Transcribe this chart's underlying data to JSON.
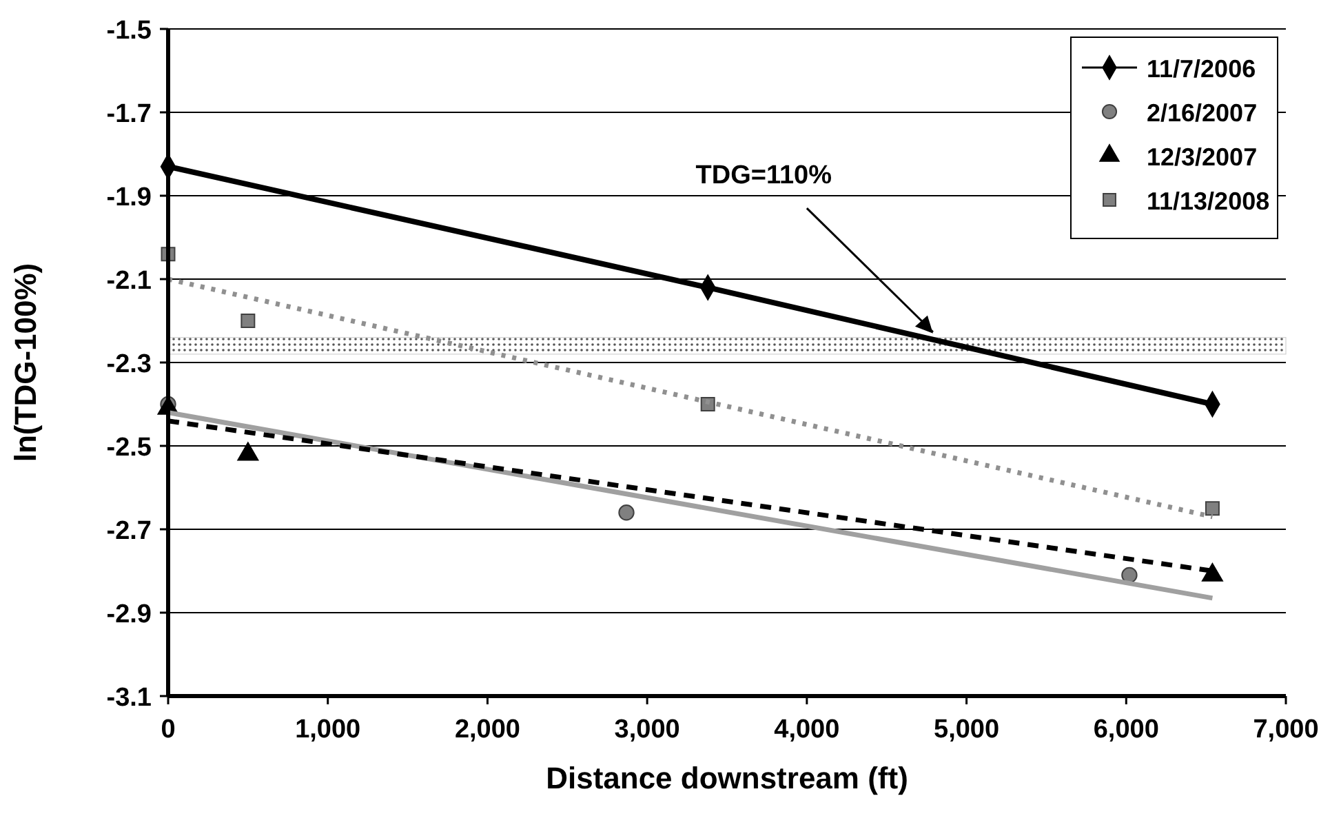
{
  "chart_data": {
    "type": "scatter",
    "xlabel": "Distance downstream (ft)",
    "ylabel": "ln(TDG-100%)",
    "xlim": [
      0,
      7000
    ],
    "xticks": [
      {
        "value": 0,
        "label": "0"
      },
      {
        "value": 1000,
        "label": "1,000"
      },
      {
        "value": 2000,
        "label": "2,000"
      },
      {
        "value": 3000,
        "label": "3,000"
      },
      {
        "value": 4000,
        "label": "4,000"
      },
      {
        "value": 5000,
        "label": "5,000"
      },
      {
        "value": 6000,
        "label": "6,000"
      },
      {
        "value": 7000,
        "label": "7,000"
      }
    ],
    "ylim": [
      -3.1,
      -1.5
    ],
    "yticks": [
      -3.1,
      -2.9,
      -2.7,
      -2.5,
      -2.3,
      -2.1,
      -1.9,
      -1.7,
      -1.5
    ],
    "grid": "y",
    "legend": "top right",
    "series": [
      {
        "name": "11/7/2006",
        "type": "line",
        "marker": "diamond",
        "line_style": "solid",
        "color": "#000000",
        "x": [
          0,
          3380,
          6540
        ],
        "values": [
          -1.83,
          -2.12,
          -2.4
        ]
      },
      {
        "name": "2/16/2007",
        "marker": "circle",
        "color": "#808080",
        "x": [
          0,
          2870,
          6020
        ],
        "values": [
          -2.4,
          -2.66,
          -2.81
        ]
      },
      {
        "name": "12/3/2007",
        "marker": "triangle",
        "color": "#000000",
        "x": [
          0,
          500,
          6540
        ],
        "values": [
          -2.41,
          -2.52,
          -2.81
        ]
      },
      {
        "name": "11/13/2008",
        "marker": "square",
        "color": "#808080",
        "x": [
          0,
          500,
          3380,
          6540
        ],
        "values": [
          -2.04,
          -2.2,
          -2.4,
          -2.65
        ]
      },
      {
        "type": "line",
        "marker": "none",
        "line_style": "solid",
        "color": "#a0a0a0",
        "x": [
          0,
          6540
        ],
        "values": [
          -2.42,
          -2.865
        ]
      },
      {
        "type": "line",
        "marker": "none",
        "line_style": "dashed",
        "color": "#000000",
        "x": [
          0,
          6540
        ],
        "values": [
          -2.44,
          -2.8
        ]
      },
      {
        "type": "line",
        "marker": "none",
        "line_style": "dotted",
        "color": "#909090",
        "x": [
          0,
          6540
        ],
        "values": [
          -2.1,
          -2.67
        ]
      }
    ],
    "bands": [
      {
        "axis": "y",
        "from": -2.28,
        "to": -2.24,
        "label": "TDG=110%",
        "color": "#c8c8c8"
      }
    ]
  }
}
